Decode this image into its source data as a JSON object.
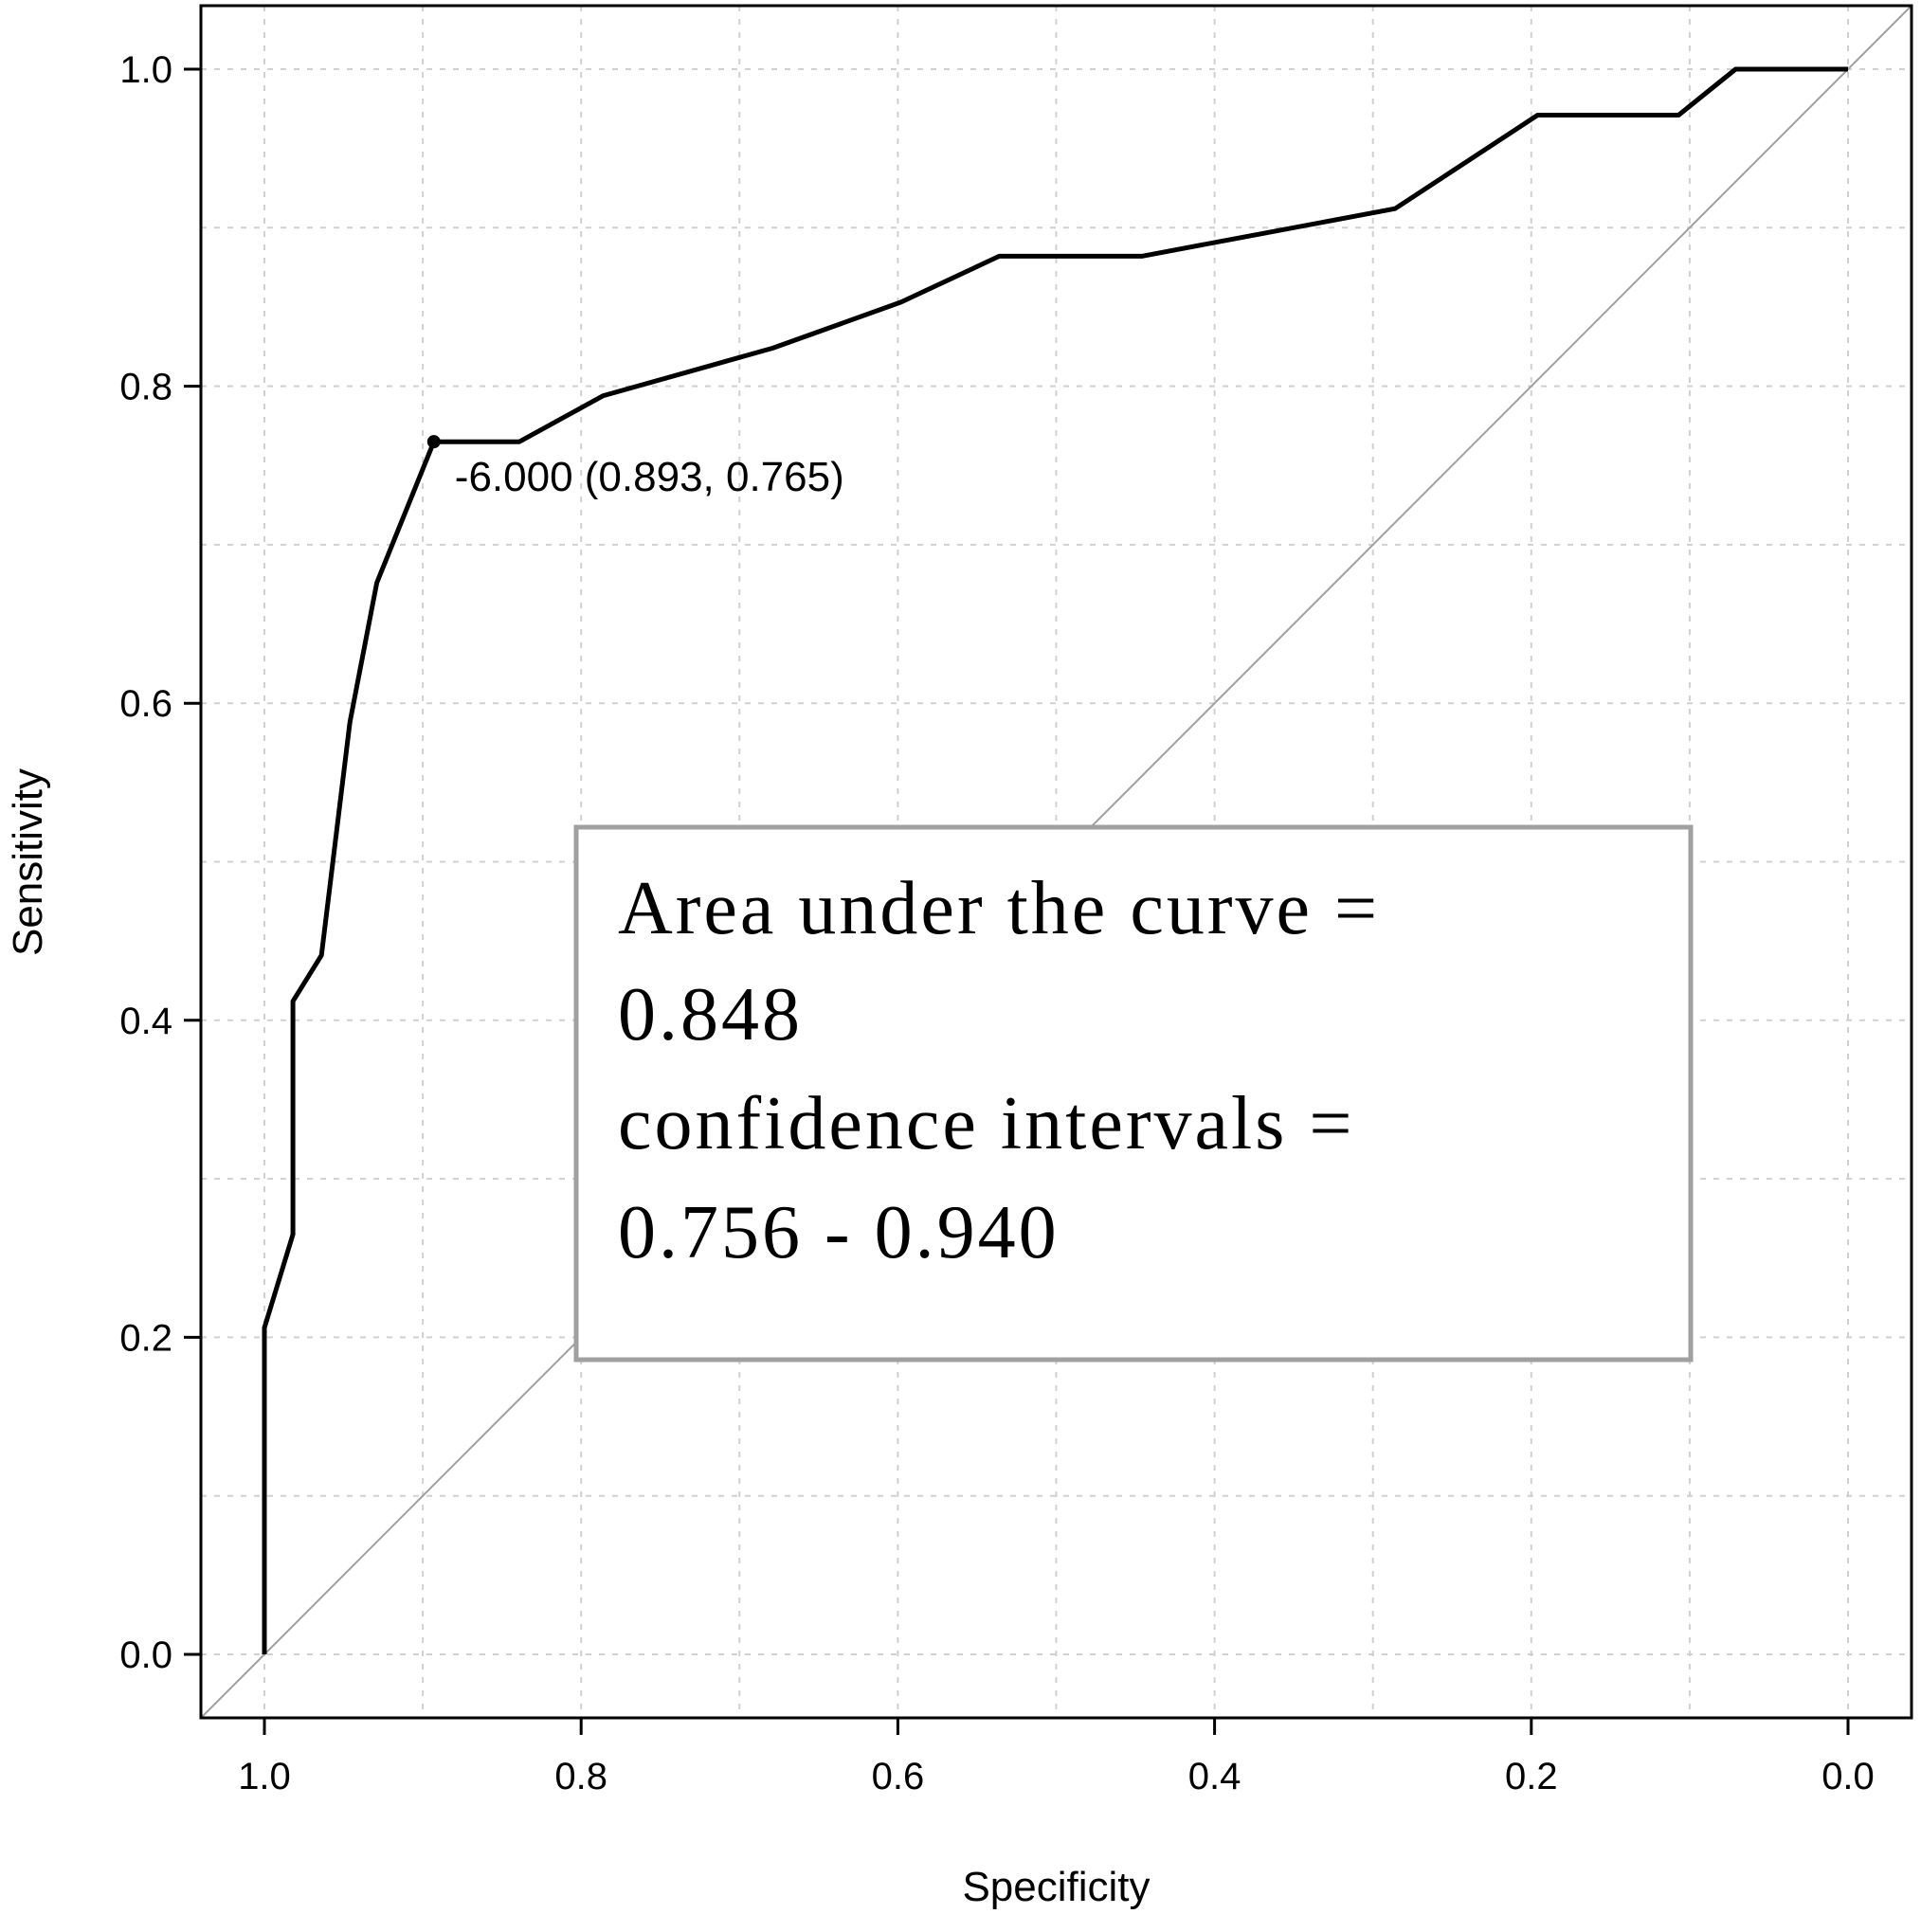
{
  "chart_data": {
    "type": "line",
    "xlabel": "Specificity",
    "ylabel": "Sensitivity",
    "xlim": [
      1.0,
      0.0
    ],
    "ylim": [
      0.0,
      1.0
    ],
    "x_reversed": true,
    "grid": true,
    "x_ticks": [
      "1.0",
      "0.8",
      "0.6",
      "0.4",
      "0.2",
      "0.0"
    ],
    "y_ticks": [
      "0.0",
      "0.2",
      "0.4",
      "0.6",
      "0.8",
      "1.0"
    ],
    "x_tick_values": [
      1.0,
      0.8,
      0.6,
      0.4,
      0.2,
      0.0
    ],
    "y_tick_values": [
      0.0,
      0.2,
      0.4,
      0.6,
      0.8,
      1.0
    ],
    "series": [
      {
        "x": [
          1.0,
          1.0,
          0.982,
          0.982,
          0.964,
          0.946,
          0.929,
          0.893,
          0.839,
          0.786,
          0.679,
          0.598,
          0.536,
          0.446,
          0.286,
          0.196,
          0.107,
          0.071,
          0.0
        ],
        "y": [
          0.0,
          0.206,
          0.265,
          0.412,
          0.441,
          0.588,
          0.676,
          0.765,
          0.765,
          0.794,
          0.824,
          0.853,
          0.882,
          0.882,
          0.912,
          0.971,
          0.971,
          1.0,
          1.0
        ],
        "color": "#000000"
      }
    ],
    "reference_line": {
      "x": [
        1.0,
        0.0
      ],
      "y": [
        0.0,
        1.0
      ],
      "color": "#a0a0a0"
    },
    "highlight_point": {
      "x": 0.893,
      "y": 0.765,
      "label": "-6.000 (0.893, 0.765)"
    },
    "legend_box": {
      "lines": [
        "Area under the curve =",
        "0.848",
        "confidence intervals =",
        "0.756 - 0.940"
      ],
      "border_color": "#a0a0a0"
    }
  }
}
